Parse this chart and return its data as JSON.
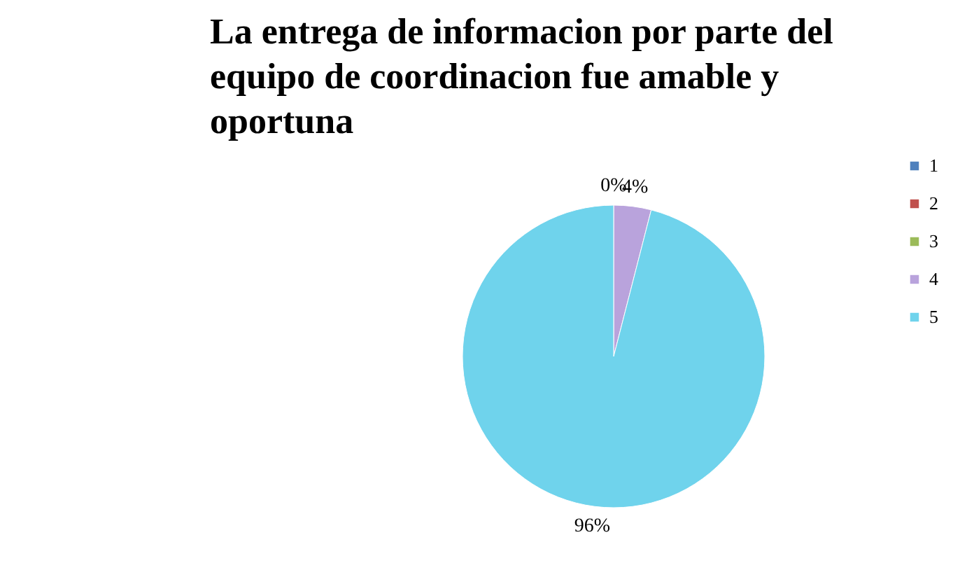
{
  "chart_data": {
    "type": "pie",
    "title": "La entrega de informacion por parte del equipo de coordinacion fue amable y oportuna",
    "categories": [
      "1",
      "2",
      "3",
      "4",
      "5"
    ],
    "values": [
      0,
      0,
      0,
      4,
      96
    ],
    "colors": [
      "#4f81bd",
      "#c0504d",
      "#9bbb59",
      "#b9a3dc",
      "#6fd3ec"
    ],
    "value_labels": [
      "0%",
      null,
      null,
      "4%",
      "96%"
    ],
    "legend": "right"
  }
}
